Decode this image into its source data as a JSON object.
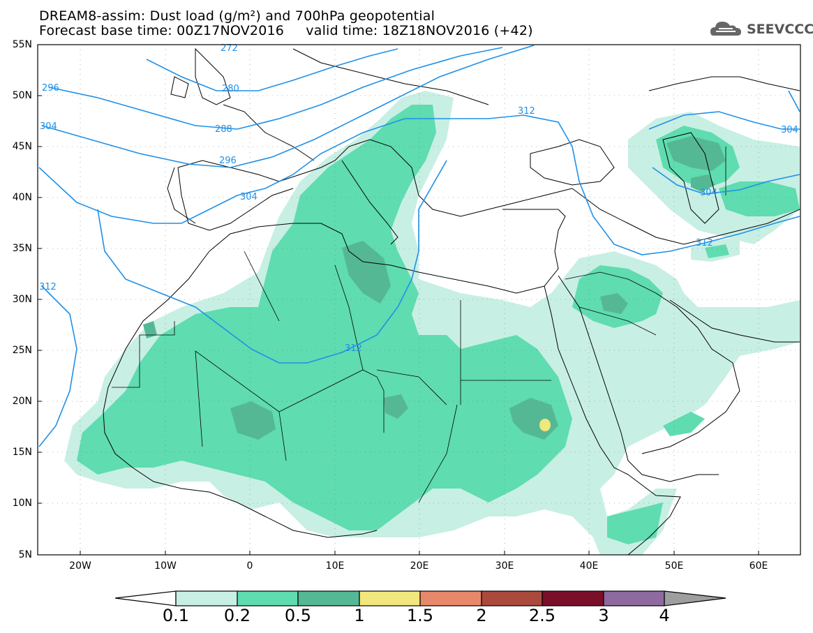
{
  "title": {
    "line1": "DREAM8-assim: Dust load (g/m²) and 700hPa geopotential",
    "line2": "Forecast base time: 00Z17NOV2016     valid time: 18Z18NOV2016 (+42)"
  },
  "logo": {
    "text": "SEEVCCC",
    "icon": "cloud-icon"
  },
  "colors": {
    "c1": "#c8efe4",
    "c2": "#5fdcb0",
    "c3": "#55b895",
    "c4": "#f2e77c",
    "c5": "#e8886a",
    "c6": "#a94a3c",
    "c7": "#7a0f2a",
    "c8": "#8e6aa0",
    "c9": "#9e9e9e",
    "contour": "#1e90e8",
    "coast": "#000000"
  },
  "axes": {
    "lat_labels": [
      "55N",
      "50N",
      "45N",
      "40N",
      "35N",
      "30N",
      "25N",
      "20N",
      "15N",
      "10N",
      "5N"
    ],
    "lon_labels": [
      "20W",
      "10W",
      "0",
      "10E",
      "20E",
      "30E",
      "40E",
      "50E",
      "60E"
    ]
  },
  "contours": {
    "labels": [
      "272",
      "280",
      "288",
      "296",
      "304",
      "312",
      "296",
      "304",
      "312",
      "304",
      "312",
      "312",
      "304"
    ]
  },
  "colorbar": {
    "labels": [
      "0.1",
      "0.2",
      "0.5",
      "1",
      "1.5",
      "2",
      "2.5",
      "3",
      "4"
    ]
  }
}
